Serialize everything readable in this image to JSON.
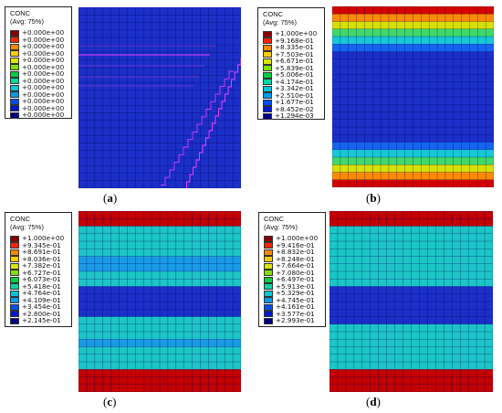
{
  "panels": [
    {
      "id": "a",
      "caption_open": "(",
      "caption_letter": "a",
      "caption_close": ")",
      "legend_title": "CONC",
      "legend_subtitle": "(Avg: 75%)",
      "legend_values": [
        "+0.000e+00",
        "+0.000e+00",
        "+0.000e+00",
        "+0.000e+00",
        "+0.000e+00",
        "+0.000e+00",
        "+0.000e+00",
        "+0.000e+00",
        "+0.000e+00",
        "+0.000e+00",
        "+0.000e+00",
        "+0.000e+00",
        "+0.000e+00"
      ],
      "row_colors": [
        "#1b2fc8",
        "#1b2fc8",
        "#1b2fc8",
        "#1b2fc8",
        "#1b2fc8",
        "#1b2fc8",
        "#1b2fc8",
        "#1b2fc8",
        "#1b2fc8",
        "#1b2fc8",
        "#1b2fc8",
        "#1b2fc8",
        "#1b2fc8",
        "#1b2fc8",
        "#1b2fc8",
        "#1b2fc8",
        "#1b2fc8",
        "#1b2fc8",
        "#1b2fc8",
        "#1b2fc8",
        "#1b2fc8",
        "#1b2fc8",
        "#1b2fc8",
        "#1b2fc8"
      ]
    },
    {
      "id": "b",
      "caption_open": "(",
      "caption_letter": "b",
      "caption_close": ")",
      "legend_title": "CONC",
      "legend_subtitle": "(Avg: 75%)",
      "legend_values": [
        "+1.000e+00",
        "+9.168e-01",
        "+8.335e-01",
        "+7.503e-01",
        "+6.671e-01",
        "+5.839e-01",
        "+5.006e-01",
        "+4.174e-01",
        "+3.342e-01",
        "+2.510e-01",
        "+1.677e-01",
        "+8.452e-02",
        "+1.294e-03"
      ],
      "row_colors": [
        "#d50000",
        "#ff8a00",
        "#d7e000",
        "#3fd86a",
        "#17c8d6",
        "#1565f0",
        "#1b2fc8",
        "#1b2fc8",
        "#1b2fc8",
        "#1b2fc8",
        "#1b2fc8",
        "#1b2fc8",
        "#1b2fc8",
        "#1b2fc8",
        "#1b2fc8",
        "#1b2fc8",
        "#1b2fc8",
        "#1b2fc8",
        "#1565f0",
        "#17c8d6",
        "#3fd86a",
        "#d7e000",
        "#ff8a00",
        "#d50000"
      ]
    },
    {
      "id": "c",
      "caption_open": "(",
      "caption_letter": "c",
      "caption_close": ")",
      "legend_title": "CONC",
      "legend_subtitle": "(Avg: 75%)",
      "legend_values": [
        "+1.000e+00",
        "+9.345e-01",
        "+8.691e-01",
        "+8.036e-01",
        "+7.382e-01",
        "+6.727e-01",
        "+6.073e-01",
        "+5.418e-01",
        "+4.764e-01",
        "+4.109e-01",
        "+3.454e-01",
        "+2.800e-01",
        "+2.145e-01"
      ],
      "row_colors": [
        "#c40000",
        "#c40000",
        "#1cc6c6",
        "#1cc6c6",
        "#1cc6c6",
        "#1cc6c6",
        "#1a9be6",
        "#1a9be6",
        "#1cc6c6",
        "#1cc6c6",
        "#1b2fc8",
        "#1b2fc8",
        "#1b2fc8",
        "#1b2fc8",
        "#1cc6c6",
        "#1cc6c6",
        "#1cc6c6",
        "#1a9be6",
        "#1cc6c6",
        "#1cc6c6",
        "#1cc6c6",
        "#c40000",
        "#c40000",
        "#c40000"
      ]
    },
    {
      "id": "d",
      "caption_open": "(",
      "caption_letter": "d",
      "caption_close": ")",
      "legend_title": "CONC",
      "legend_subtitle": "(Avg: 75%)",
      "legend_values": [
        "+1.000e+00",
        "+9.416e-01",
        "+8.832e-01",
        "+8.248e-01",
        "+7.664e-01",
        "+7.080e-01",
        "+6.497e-01",
        "+5.913e-01",
        "+5.329e-01",
        "+4.745e-01",
        "+4.161e-01",
        "+3.577e-01",
        "+2.993e-01"
      ],
      "row_colors": [
        "#c40000",
        "#c40000",
        "#1cc6c6",
        "#1cc6c6",
        "#1cc6c6",
        "#1cc6c6",
        "#1cc6c6",
        "#1cc6c6",
        "#1cc6c6",
        "#1cc6c6",
        "#1b2fc8",
        "#1b2fc8",
        "#1b2fc8",
        "#1b2fc8",
        "#1b2fc8",
        "#1cc6c6",
        "#1cc6c6",
        "#1cc6c6",
        "#1cc6c6",
        "#1cc6c6",
        "#1cc6c6",
        "#c40000",
        "#c40000",
        "#c40000"
      ]
    }
  ],
  "legend_colors": [
    "#8a0000",
    "#ff2200",
    "#ff8800",
    "#ffcc00",
    "#d8e600",
    "#7fe000",
    "#00d040",
    "#00d8a0",
    "#00c8d8",
    "#009cf0",
    "#0050f0",
    "#0018d0",
    "#00008a"
  ],
  "mesh_color": "#000060",
  "crack_color": "#ff40ff"
}
